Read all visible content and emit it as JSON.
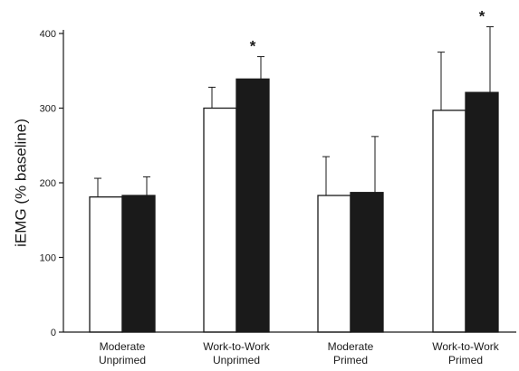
{
  "chart_data": {
    "type": "bar",
    "title": "",
    "xlabel": "",
    "ylabel": "iEMG (% baseline)",
    "ylim": [
      0,
      400
    ],
    "yticks": [
      0,
      100,
      200,
      300,
      400
    ],
    "grid": false,
    "legend": "none",
    "categories": [
      [
        "Moderate",
        "Unprimed"
      ],
      [
        "Work-to-Work",
        "Unprimed"
      ],
      [
        "Moderate",
        "Primed"
      ],
      [
        "Work-to-Work",
        "Primed"
      ]
    ],
    "series": [
      {
        "fill": "#ffffff",
        "values": [
          181,
          300,
          183,
          297
        ],
        "error": [
          25,
          28,
          52,
          78
        ]
      },
      {
        "fill": "#1a1a1a",
        "values": [
          183,
          339,
          187,
          321
        ],
        "error": [
          25,
          30,
          75,
          88
        ]
      }
    ],
    "annotations": [
      {
        "category_index": 1,
        "series_index": 1,
        "text": "*"
      },
      {
        "category_index": 3,
        "series_index": 1,
        "text": "*"
      }
    ]
  }
}
